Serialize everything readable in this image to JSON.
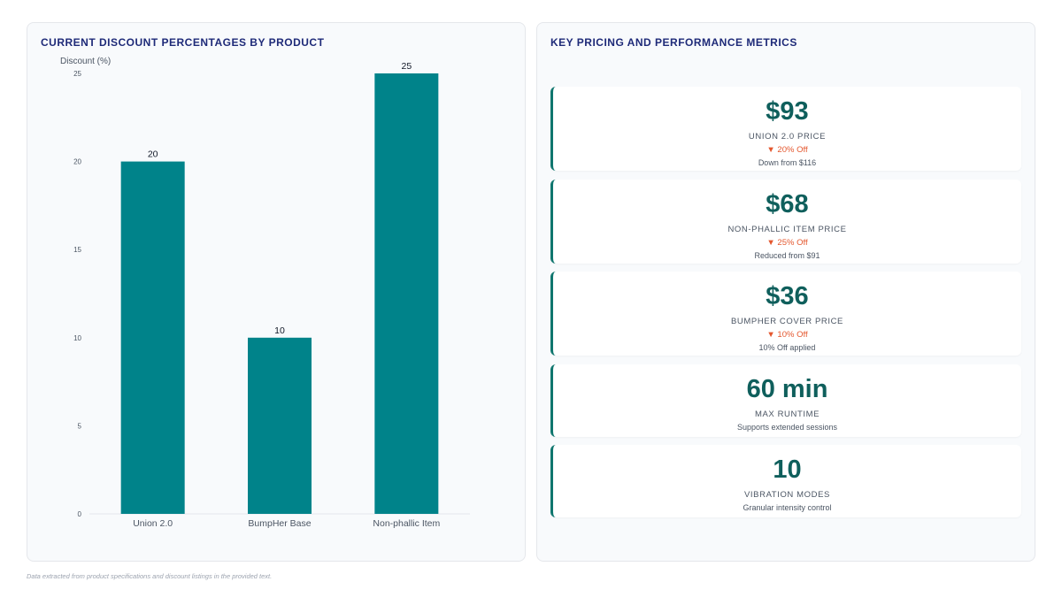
{
  "left_panel": {
    "title": "CURRENT DISCOUNT PERCENTAGES BY PRODUCT"
  },
  "right_panel": {
    "title": "KEY PRICING AND PERFORMANCE METRICS",
    "cards": [
      {
        "value": "$93",
        "label": "UNION 2.0 PRICE",
        "change": "▼ 20% Off",
        "note": "Down from $116"
      },
      {
        "value": "$68",
        "label": "NON-PHALLIC ITEM PRICE",
        "change": "▼ 25% Off",
        "note": "Reduced from $91"
      },
      {
        "value": "$36",
        "label": "BUMPHER COVER PRICE",
        "change": "▼ 10% Off",
        "note": "10% Off applied"
      },
      {
        "value": "60 min",
        "label": "MAX RUNTIME",
        "note": "Supports extended sessions"
      },
      {
        "value": "10",
        "label": "VIBRATION MODES",
        "note": "Granular intensity control"
      }
    ]
  },
  "footnote": "Data extracted from product specifications and discount listings in the provided text.",
  "colors": {
    "bar": "#00838a",
    "value_text": "#0f5f5c",
    "change_text": "#e4572e",
    "title_text": "#1e2a78"
  },
  "chart_data": {
    "type": "bar",
    "title": "CURRENT DISCOUNT PERCENTAGES BY PRODUCT",
    "ylabel": "Discount (%)",
    "xlabel": "",
    "categories": [
      "Union 2.0",
      "BumpHer Base",
      "Non-phallic Item"
    ],
    "values": [
      20,
      10,
      25
    ],
    "ylim": [
      0,
      25
    ],
    "yticks": [
      0,
      5,
      10,
      15,
      20,
      25
    ],
    "grid": false,
    "data_labels": true,
    "legend": "none"
  }
}
